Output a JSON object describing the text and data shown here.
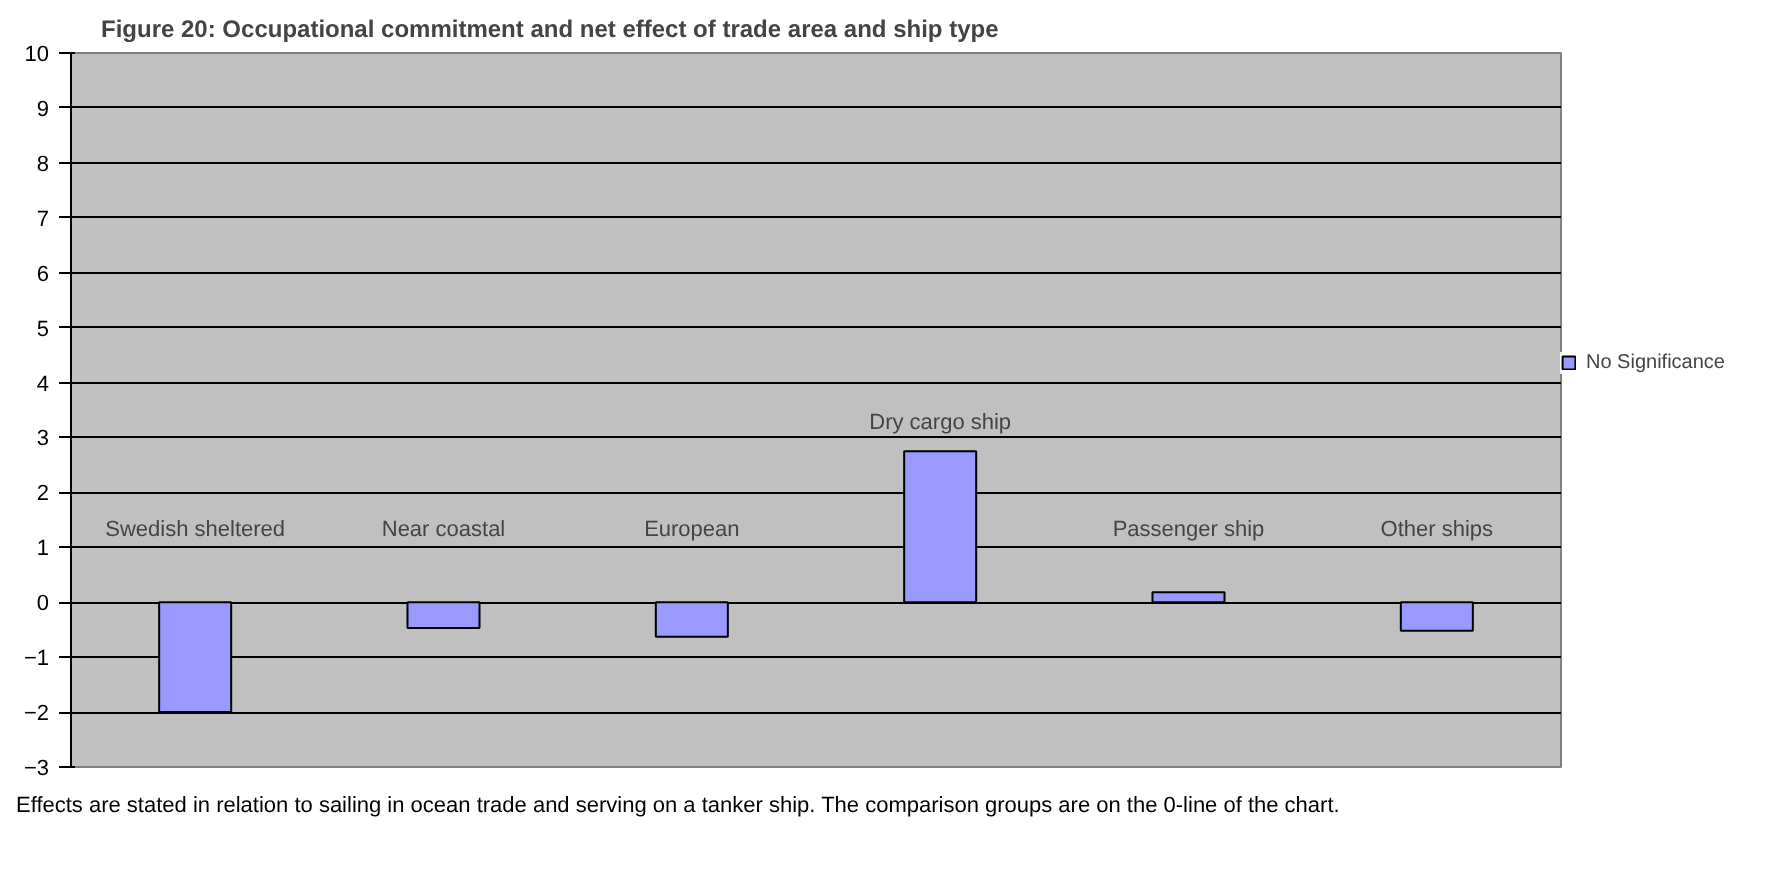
{
  "chart_data": {
    "type": "bar",
    "title": "Figure 20: Occupational commitment and net effect of trade area and ship type",
    "categories": [
      "Swedish sheltered",
      "Near coastal",
      "European",
      "Dry cargo ship",
      "Passenger ship",
      "Other ships"
    ],
    "series": [
      {
        "name": "No Significance",
        "color": "#9999ff",
        "values": [
          -2.0,
          -0.47,
          -0.63,
          2.75,
          0.18,
          -0.52
        ]
      }
    ],
    "ylim": [
      -3,
      10
    ],
    "yticks": [
      -3,
      -2,
      -1,
      0,
      1,
      2,
      3,
      4,
      5,
      6,
      7,
      8,
      9,
      10
    ],
    "grid": "y",
    "legend": "right",
    "tick_labels": "y",
    "annotations": [
      "Effects are stated in relation to sailing in ocean trade and serving on a tanker ship. The comparison groups are on the 0-line of the chart."
    ]
  }
}
